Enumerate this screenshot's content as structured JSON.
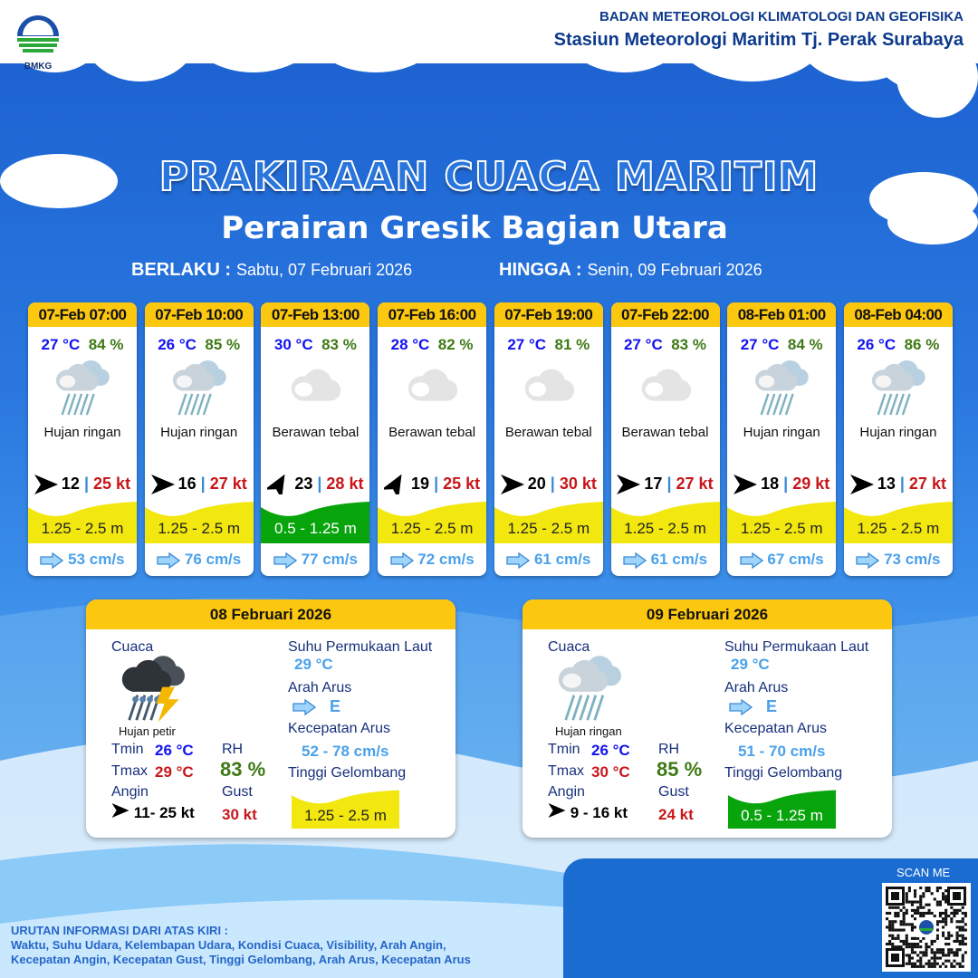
{
  "header": {
    "logo_text": "BMKG",
    "org_line1": "BADAN METEOROLOGI KLIMATOLOGI DAN GEOFISIKA",
    "org_line2": "Stasiun Meteorologi Maritim Tj. Perak Surabaya"
  },
  "title": "PRAKIRAAN CUACA MARITIM",
  "subtitle": "Perairan Gresik Bagian Utara",
  "validity": {
    "from_label": "BERLAKU :",
    "from_value": "Sabtu, 07 Februari 2026",
    "to_label": "HINGGA :",
    "to_value": "Senin, 09 Februari 2026"
  },
  "colors": {
    "header_yellow": "#fcc70f",
    "wave_yellow": "#f2e70e",
    "wave_green": "#08a40c",
    "temp": "#1212f0",
    "rh": "#3f7a16",
    "gust": "#c8161a",
    "current": "#4aa1ea"
  },
  "forecasts": [
    {
      "time": "07-Feb 07:00",
      "temp": "27 °C",
      "rh": "84 %",
      "icon": "light-rain-icon",
      "condition": "Hujan ringan",
      "wind_dir": "E",
      "wind": "12",
      "gust": "25 kt",
      "wave": "1.25 - 2.5 m",
      "wave_level": "yellow",
      "current": "53 cm/s"
    },
    {
      "time": "07-Feb 10:00",
      "temp": "26 °C",
      "rh": "85 %",
      "icon": "light-rain-icon",
      "condition": "Hujan ringan",
      "wind_dir": "E",
      "wind": "16",
      "gust": "27 kt",
      "wave": "1.25 - 2.5 m",
      "wave_level": "yellow",
      "current": "76 cm/s"
    },
    {
      "time": "07-Feb 13:00",
      "temp": "30 °C",
      "rh": "83 %",
      "icon": "overcast-icon",
      "condition": "Berawan tebal",
      "wind_dir": "NE",
      "wind": "23",
      "gust": "28 kt",
      "wave": "0.5 - 1.25 m",
      "wave_level": "green",
      "current": "77 cm/s"
    },
    {
      "time": "07-Feb 16:00",
      "temp": "28 °C",
      "rh": "82 %",
      "icon": "overcast-icon",
      "condition": "Berawan tebal",
      "wind_dir": "NE",
      "wind": "19",
      "gust": "25 kt",
      "wave": "1.25 - 2.5 m",
      "wave_level": "yellow",
      "current": "72 cm/s"
    },
    {
      "time": "07-Feb 19:00",
      "temp": "27 °C",
      "rh": "81 %",
      "icon": "overcast-icon",
      "condition": "Berawan tebal",
      "wind_dir": "E",
      "wind": "20",
      "gust": "30 kt",
      "wave": "1.25 - 2.5 m",
      "wave_level": "yellow",
      "current": "61 cm/s"
    },
    {
      "time": "07-Feb 22:00",
      "temp": "27 °C",
      "rh": "83 %",
      "icon": "overcast-icon",
      "condition": "Berawan tebal",
      "wind_dir": "E",
      "wind": "17",
      "gust": "27 kt",
      "wave": "1.25 - 2.5 m",
      "wave_level": "yellow",
      "current": "61 cm/s"
    },
    {
      "time": "08-Feb 01:00",
      "temp": "27 °C",
      "rh": "84 %",
      "icon": "light-rain-icon",
      "condition": "Hujan ringan",
      "wind_dir": "E",
      "wind": "18",
      "gust": "29 kt",
      "wave": "1.25 - 2.5 m",
      "wave_level": "yellow",
      "current": "67 cm/s"
    },
    {
      "time": "08-Feb 04:00",
      "temp": "26 °C",
      "rh": "86 %",
      "icon": "light-rain-icon",
      "condition": "Hujan ringan",
      "wind_dir": "E",
      "wind": "13",
      "gust": "27 kt",
      "wave": "1.25 - 2.5 m",
      "wave_level": "yellow",
      "current": "73 cm/s"
    }
  ],
  "labels": {
    "weather": "Cuaca",
    "tmin": "Tmin",
    "tmax": "Tmax",
    "rh": "RH",
    "wind": "Angin",
    "gust": "Gust",
    "sst": "Suhu Permukaan Laut",
    "current_dir": "Arah Arus",
    "current_speed": "Kecepatan Arus",
    "wave": "Tinggi Gelombang"
  },
  "daily": [
    {
      "date": "08 Februari 2026",
      "icon": "thunderstorm-icon",
      "condition": "Hujan petir",
      "tmin": "26 °C",
      "tmax": "29 °C",
      "rh": "83 %",
      "wind": "11- 25 kt",
      "gust": "30 kt",
      "sst": "29 °C",
      "current_dir": "E",
      "current_speed": "52  - 78 cm/s",
      "wave": "1.25 - 2.5 m",
      "wave_level": "yellow"
    },
    {
      "date": "09 Februari 2026",
      "icon": "light-rain-icon",
      "condition": "Hujan ringan",
      "tmin": "26 °C",
      "tmax": "30 °C",
      "rh": "85 %",
      "wind": "9  - 16 kt",
      "gust": "24 kt",
      "sst": "29 °C",
      "current_dir": "E",
      "current_speed": "51  - 70 cm/s",
      "wave": "0.5 - 1.25 m",
      "wave_level": "green"
    }
  ],
  "footer": {
    "legend_title": "URUTAN INFORMASI DARI ATAS KIRI :",
    "legend_line1": "Waktu, Suhu Udara, Kelembapan Udara, Kondisi Cuaca, Visibility, Arah Angin,",
    "legend_line2": "Kecepatan Angin, Kecepatan Gust, Tinggi Gelombang, Arah Arus, Kecepatan Arus",
    "scan_label": "SCAN ME"
  }
}
